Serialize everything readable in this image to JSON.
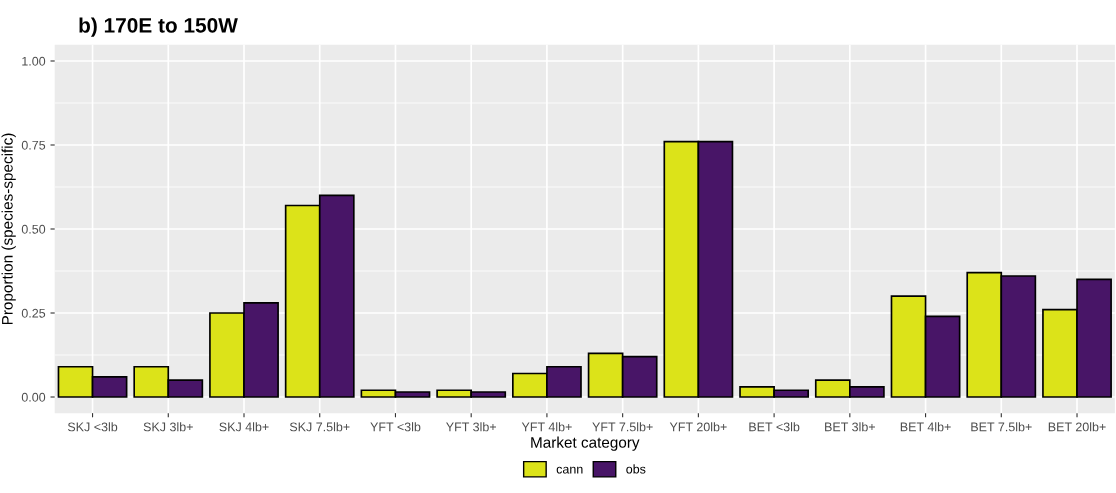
{
  "chart_data": {
    "type": "bar",
    "title": "b) 170E to 150W",
    "xlabel": "Market category",
    "ylabel": "Proportion (species-specific)",
    "categories": [
      "SKJ <3lb",
      "SKJ 3lb+",
      "SKJ 4lb+",
      "SKJ 7.5lb+",
      "YFT <3lb",
      "YFT 3lb+",
      "YFT 4lb+",
      "YFT 7.5lb+",
      "YFT 20lb+",
      "BET <3lb",
      "BET 3lb+",
      "BET 4lb+",
      "BET 7.5lb+",
      "BET 20lb+"
    ],
    "series": [
      {
        "name": "cann",
        "color": "#dce319",
        "values": [
          0.09,
          0.09,
          0.25,
          0.57,
          0.02,
          0.02,
          0.07,
          0.13,
          0.76,
          0.03,
          0.05,
          0.3,
          0.37,
          0.26
        ]
      },
      {
        "name": "obs",
        "color": "#481567",
        "values": [
          0.06,
          0.05,
          0.28,
          0.6,
          0.015,
          0.015,
          0.09,
          0.12,
          0.76,
          0.02,
          0.03,
          0.24,
          0.36,
          0.35
        ]
      }
    ],
    "ylim": [
      -0.048,
      1.048
    ],
    "yticks": [
      {
        "value": 0,
        "label": "0.00"
      },
      {
        "value": 0.25,
        "label": "0.25"
      },
      {
        "value": 0.5,
        "label": "0.50"
      },
      {
        "value": 0.75,
        "label": "0.75"
      },
      {
        "value": 1,
        "label": "1.00"
      }
    ],
    "grid": true,
    "legend": "bottom"
  }
}
